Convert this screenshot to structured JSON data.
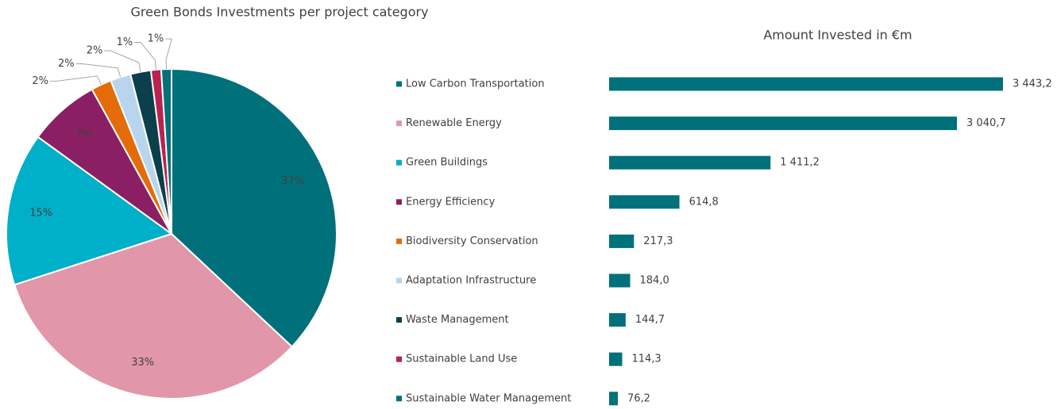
{
  "chart_data": [
    {
      "type": "pie",
      "title": "Green Bonds Investments per project category",
      "categories": [
        "Low Carbon Transportation",
        "Renewable Energy",
        "Green Buildings",
        "Energy Efficiency",
        "Biodiversity Conservation",
        "Adaptation Infrastructure",
        "Waste Management",
        "Sustainable Land Use",
        "Sustainable Water Management"
      ],
      "values": [
        37,
        33,
        15,
        7,
        2,
        2,
        2,
        1,
        1
      ],
      "value_labels": [
        "37%",
        "33%",
        "15%",
        "7%",
        "2%",
        "2%",
        "2%",
        "1%",
        "1%"
      ],
      "colors": [
        "#00707a",
        "#e197a9",
        "#00afc8",
        "#8a2063",
        "#e36c09",
        "#b9d5ee",
        "#0b3f4b",
        "#b8234f",
        "#00707a"
      ]
    },
    {
      "type": "hbar",
      "title": "Amount Invested in €m",
      "categories": [
        "Low Carbon Transportation",
        "Renewable Energy",
        "Green Buildings",
        "Energy Efficiency",
        "Biodiversity Conservation",
        "Adaptation Infrastructure",
        "Waste Management",
        "Sustainable Land Use",
        "Sustainable Water Management"
      ],
      "values": [
        3443.2,
        3040.7,
        1411.2,
        614.8,
        217.3,
        184.0,
        144.7,
        114.3,
        76.2
      ],
      "value_labels": [
        "3 443,2",
        "3 040,7",
        "1 411,2",
        "614,8",
        "217,3",
        "184,0",
        "144,7",
        "114,3",
        "76,2"
      ],
      "color": "#00707a",
      "legend_colors": [
        "#00707a",
        "#e197a9",
        "#00afc8",
        "#8a2063",
        "#e36c09",
        "#b9d5ee",
        "#0b3f4b",
        "#b8234f",
        "#00707a"
      ]
    }
  ]
}
